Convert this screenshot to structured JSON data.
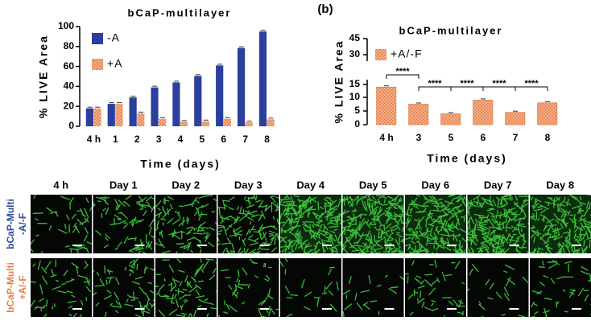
{
  "chart_data": [
    {
      "type": "bar",
      "title": "bCaP-multilayer",
      "y_label": "% LIVE Area",
      "x_label": "Time (days)",
      "categories": [
        "4 h",
        "1",
        "2",
        "3",
        "4",
        "5",
        "6",
        "7",
        "8"
      ],
      "series": [
        {
          "name": "-A",
          "color": "#2b3f9e",
          "values": [
            18,
            22.5,
            29,
            39,
            44,
            50.5,
            61,
            78.5,
            95
          ]
        },
        {
          "name": "+A",
          "color": "#e8804c",
          "values": [
            18,
            22.5,
            13,
            7.5,
            4.5,
            5,
            7.5,
            4,
            7
          ]
        }
      ],
      "ylim": [
        0,
        100
      ],
      "yticks": [
        0,
        20,
        40,
        60,
        80,
        100
      ],
      "legend": "top-left"
    },
    {
      "type": "bar",
      "panel_label": "(b)",
      "title": "bCaP-multilayer",
      "y_label": "% LIVE Area",
      "x_label": "Time (days)",
      "categories": [
        "4 h",
        "3",
        "5",
        "6",
        "7",
        "8"
      ],
      "series": [
        {
          "name": "+A/-F",
          "color": "#e8804c",
          "values": [
            14,
            7.5,
            4,
            9,
            4.5,
            8
          ]
        }
      ],
      "ylim": [
        0,
        45
      ],
      "yticks": [
        0,
        5,
        10,
        15,
        30,
        45
      ],
      "legend": "top-left",
      "annotations": [
        "****",
        "****",
        "****",
        "****",
        "****"
      ]
    }
  ],
  "image_grid": {
    "columns": [
      "4 h",
      "Day 1",
      "Day 2",
      "Day 3",
      "Day 4",
      "Day 5",
      "Day 6",
      "Day 7",
      "Day 8"
    ],
    "rows": [
      [
        "bCaP-Multi",
        "-A/-F"
      ],
      [
        "bCaP-Multi",
        "+A/-F"
      ]
    ]
  }
}
